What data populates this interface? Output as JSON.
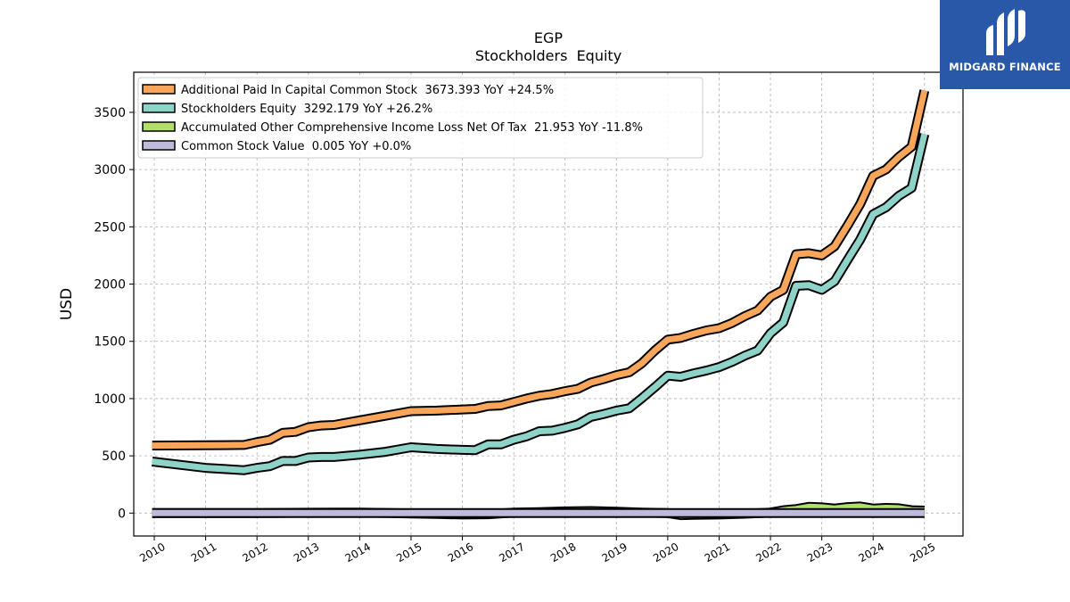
{
  "chart_data": {
    "type": "line",
    "title": "EGP",
    "subtitle": "Stockholders  Equity",
    "xlabel": "",
    "ylabel": "USD",
    "xlim": [
      2009.6,
      2025.75
    ],
    "ylim": [
      -200,
      3850
    ],
    "x_ticks": [
      2010,
      2011,
      2012,
      2013,
      2014,
      2015,
      2016,
      2017,
      2018,
      2019,
      2020,
      2021,
      2022,
      2023,
      2024,
      2025
    ],
    "x_tick_labels": [
      "2010",
      "2011",
      "2012",
      "2013",
      "2014",
      "2015",
      "2016",
      "2017",
      "2018",
      "2019",
      "2020",
      "2021",
      "2022",
      "2023",
      "2024",
      "2025"
    ],
    "y_ticks": [
      0,
      500,
      1000,
      1500,
      2000,
      2500,
      3000,
      3500
    ],
    "y_tick_labels": [
      "0",
      "500",
      "1000",
      "1500",
      "2000",
      "2500",
      "3000",
      "3500"
    ],
    "grid": true,
    "legend_position": "top-left",
    "series": [
      {
        "name": "Additional Paid In Capital Common Stock",
        "legend_label": "Additional Paid In Capital Common Stock  3673.393 YoY +24.5%",
        "color": "#f9a65a",
        "points": [
          [
            2009.96,
            590
          ],
          [
            2011.0,
            592
          ],
          [
            2011.75,
            595
          ],
          [
            2012.0,
            620
          ],
          [
            2012.25,
            640
          ],
          [
            2012.5,
            700
          ],
          [
            2012.75,
            710
          ],
          [
            2013.0,
            750
          ],
          [
            2013.25,
            765
          ],
          [
            2013.5,
            770
          ],
          [
            2014.0,
            810
          ],
          [
            2014.5,
            850
          ],
          [
            2015.0,
            890
          ],
          [
            2015.5,
            895
          ],
          [
            2016.0,
            905
          ],
          [
            2016.25,
            910
          ],
          [
            2016.5,
            935
          ],
          [
            2016.75,
            940
          ],
          [
            2017.0,
            970
          ],
          [
            2017.25,
            1000
          ],
          [
            2017.5,
            1025
          ],
          [
            2017.75,
            1040
          ],
          [
            2018.0,
            1065
          ],
          [
            2018.25,
            1085
          ],
          [
            2018.5,
            1140
          ],
          [
            2018.75,
            1170
          ],
          [
            2019.0,
            1205
          ],
          [
            2019.25,
            1230
          ],
          [
            2019.5,
            1310
          ],
          [
            2019.75,
            1420
          ],
          [
            2020.0,
            1515
          ],
          [
            2020.25,
            1530
          ],
          [
            2020.5,
            1565
          ],
          [
            2020.75,
            1595
          ],
          [
            2021.0,
            1615
          ],
          [
            2021.25,
            1660
          ],
          [
            2021.5,
            1720
          ],
          [
            2021.75,
            1770
          ],
          [
            2022.0,
            1890
          ],
          [
            2022.25,
            1950
          ],
          [
            2022.5,
            2260
          ],
          [
            2022.75,
            2270
          ],
          [
            2023.0,
            2250
          ],
          [
            2023.25,
            2330
          ],
          [
            2023.5,
            2510
          ],
          [
            2023.75,
            2700
          ],
          [
            2024.0,
            2945
          ],
          [
            2024.25,
            3000
          ],
          [
            2024.5,
            3110
          ],
          [
            2024.75,
            3200
          ],
          [
            2025.0,
            3690
          ]
        ]
      },
      {
        "name": "Stockholders Equity",
        "legend_label": "Stockholders Equity  3292.179 YoY +26.2%",
        "color": "#8dd3c7",
        "points": [
          [
            2009.96,
            450
          ],
          [
            2011.0,
            395
          ],
          [
            2011.75,
            375
          ],
          [
            2012.0,
            395
          ],
          [
            2012.25,
            410
          ],
          [
            2012.5,
            455
          ],
          [
            2012.75,
            455
          ],
          [
            2013.0,
            485
          ],
          [
            2013.25,
            490
          ],
          [
            2013.5,
            490
          ],
          [
            2014.0,
            510
          ],
          [
            2014.5,
            535
          ],
          [
            2015.0,
            575
          ],
          [
            2015.5,
            560
          ],
          [
            2016.0,
            552
          ],
          [
            2016.25,
            550
          ],
          [
            2016.5,
            600
          ],
          [
            2016.75,
            600
          ],
          [
            2017.0,
            640
          ],
          [
            2017.25,
            670
          ],
          [
            2017.5,
            715
          ],
          [
            2017.75,
            720
          ],
          [
            2018.0,
            745
          ],
          [
            2018.25,
            775
          ],
          [
            2018.5,
            840
          ],
          [
            2018.75,
            865
          ],
          [
            2019.0,
            895
          ],
          [
            2019.25,
            915
          ],
          [
            2019.5,
            1005
          ],
          [
            2019.75,
            1100
          ],
          [
            2020.0,
            1200
          ],
          [
            2020.25,
            1190
          ],
          [
            2020.5,
            1220
          ],
          [
            2020.75,
            1245
          ],
          [
            2021.0,
            1275
          ],
          [
            2021.25,
            1320
          ],
          [
            2021.5,
            1375
          ],
          [
            2021.75,
            1420
          ],
          [
            2022.0,
            1570
          ],
          [
            2022.25,
            1665
          ],
          [
            2022.5,
            1985
          ],
          [
            2022.75,
            1990
          ],
          [
            2023.0,
            1950
          ],
          [
            2023.25,
            2025
          ],
          [
            2023.5,
            2210
          ],
          [
            2023.75,
            2390
          ],
          [
            2024.0,
            2610
          ],
          [
            2024.25,
            2670
          ],
          [
            2024.5,
            2770
          ],
          [
            2024.75,
            2840
          ],
          [
            2025.0,
            3310
          ]
        ]
      },
      {
        "name": "Accumulated Other Comprehensive Income Loss Net Of Tax",
        "legend_label": "Accumulated Other Comprehensive Income Loss Net Of Tax  21.953 YoY -11.8%",
        "color": "#b3de69",
        "points": [
          [
            2009.96,
            0
          ],
          [
            2012.0,
            0
          ],
          [
            2013.0,
            3
          ],
          [
            2014.0,
            5
          ],
          [
            2014.5,
            2
          ],
          [
            2015.0,
            -3
          ],
          [
            2015.5,
            -8
          ],
          [
            2016.0,
            -12
          ],
          [
            2016.5,
            -10
          ],
          [
            2017.0,
            5
          ],
          [
            2017.5,
            8
          ],
          [
            2018.0,
            15
          ],
          [
            2018.5,
            18
          ],
          [
            2019.0,
            12
          ],
          [
            2019.5,
            5
          ],
          [
            2020.0,
            0
          ],
          [
            2020.25,
            -18
          ],
          [
            2020.5,
            -15
          ],
          [
            2021.0,
            -12
          ],
          [
            2021.5,
            -5
          ],
          [
            2022.0,
            5
          ],
          [
            2022.25,
            25
          ],
          [
            2022.5,
            35
          ],
          [
            2022.75,
            55
          ],
          [
            2023.0,
            50
          ],
          [
            2023.25,
            40
          ],
          [
            2023.5,
            52
          ],
          [
            2023.75,
            58
          ],
          [
            2024.0,
            40
          ],
          [
            2024.25,
            45
          ],
          [
            2024.5,
            42
          ],
          [
            2024.75,
            25
          ],
          [
            2025.0,
            22
          ]
        ]
      },
      {
        "name": "Common Stock Value",
        "legend_label": "Common Stock Value  0.005 YoY +0.0%",
        "color": "#bebada",
        "points": [
          [
            2009.96,
            0
          ],
          [
            2025.0,
            0
          ]
        ]
      }
    ]
  },
  "logo": {
    "text": "MIDGARD FINANCE",
    "background": "#2a58a8"
  }
}
